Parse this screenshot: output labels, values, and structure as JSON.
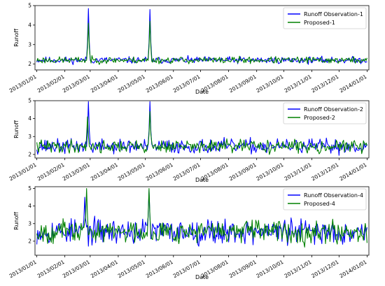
{
  "colors": {
    "observation": "#0000ff",
    "proposed": "#008000",
    "axis": "#000000",
    "legend_border": "#cccccc"
  },
  "chart_data": [
    {
      "type": "line",
      "xlabel": "Date",
      "ylabel": "Runoff",
      "x_ticks": [
        "2013/01/01",
        "2013/02/01",
        "2013/03/01",
        "2013/04/01",
        "2013/05/01",
        "2013/06/01",
        "2013/07/01",
        "2013/08/01",
        "2013/09/01",
        "2013/10/01",
        "2013/11/01",
        "2013/12/01",
        "2014/01/01"
      ],
      "y_ticks": [
        2,
        3,
        4,
        5
      ],
      "ylim": [
        1.7,
        5.0
      ],
      "xlim": [
        "2013/01/01",
        "2014/01/01"
      ],
      "legend_position": "top-right",
      "series": [
        {
          "name": "Runoff Observation-1",
          "color": "#0000ff",
          "baseline": 2.2,
          "noise": 0.12,
          "seed": 11,
          "peaks": [
            {
              "date": "2013-02-27",
              "value": 4.85
            },
            {
              "date": "2013-05-06",
              "value": 4.8
            }
          ]
        },
        {
          "name": "Proposed-1",
          "color": "#008000",
          "baseline": 2.2,
          "noise": 0.12,
          "seed": 23,
          "peaks": [
            {
              "date": "2013-02-27",
              "value": 4.1
            },
            {
              "date": "2013-05-06",
              "value": 4.2
            }
          ]
        }
      ]
    },
    {
      "type": "line",
      "xlabel": "Date",
      "ylabel": "Runoff",
      "x_ticks": [
        "2013/01/01",
        "2013/02/01",
        "2013/03/01",
        "2013/04/01",
        "2013/05/01",
        "2013/06/01",
        "2013/07/01",
        "2013/08/01",
        "2013/09/01",
        "2013/10/01",
        "2013/11/01",
        "2013/12/01",
        "2014/01/01"
      ],
      "y_ticks": [
        2,
        3,
        4,
        5
      ],
      "ylim": [
        1.8,
        5.0
      ],
      "xlim": [
        "2013/01/01",
        "2014/01/01"
      ],
      "legend_position": "top-right",
      "series": [
        {
          "name": "Runoff Observation-2",
          "color": "#0000ff",
          "baseline": 2.45,
          "noise": 0.28,
          "seed": 37,
          "peaks": [
            {
              "date": "2013-02-27",
              "value": 4.95
            },
            {
              "date": "2013-05-06",
              "value": 4.95
            }
          ]
        },
        {
          "name": "Proposed-2",
          "color": "#008000",
          "baseline": 2.45,
          "noise": 0.25,
          "seed": 41,
          "peaks": [
            {
              "date": "2013-02-26",
              "value": 4.1
            },
            {
              "date": "2013-05-06",
              "value": 4.4
            }
          ]
        }
      ]
    },
    {
      "type": "line",
      "xlabel": "Date",
      "ylabel": "Runoff",
      "x_ticks": [
        "2013/01/01",
        "2013/02/01",
        "2013/03/01",
        "2013/04/01",
        "2013/05/01",
        "2013/06/01",
        "2013/07/01",
        "2013/08/01",
        "2013/09/01",
        "2013/10/01",
        "2013/11/01",
        "2013/12/01",
        "2014/01/01"
      ],
      "y_ticks": [
        2,
        3,
        4,
        5
      ],
      "ylim": [
        1.2,
        5.1
      ],
      "xlim": [
        "2013/01/01",
        "2014/01/01"
      ],
      "legend_position": "top-right",
      "series": [
        {
          "name": "Runoff Observation-4",
          "color": "#0000ff",
          "baseline": 2.55,
          "noise": 0.5,
          "seed": 53,
          "peaks": [
            {
              "date": "2013-02-23",
              "value": 4.5
            },
            {
              "date": "2013-05-05",
              "value": 4.9
            }
          ]
        },
        {
          "name": "Proposed-4",
          "color": "#008000",
          "baseline": 2.55,
          "noise": 0.45,
          "seed": 67,
          "peaks": [
            {
              "date": "2013-02-25",
              "value": 5.0
            },
            {
              "date": "2013-05-05",
              "value": 5.0
            }
          ]
        }
      ]
    }
  ]
}
